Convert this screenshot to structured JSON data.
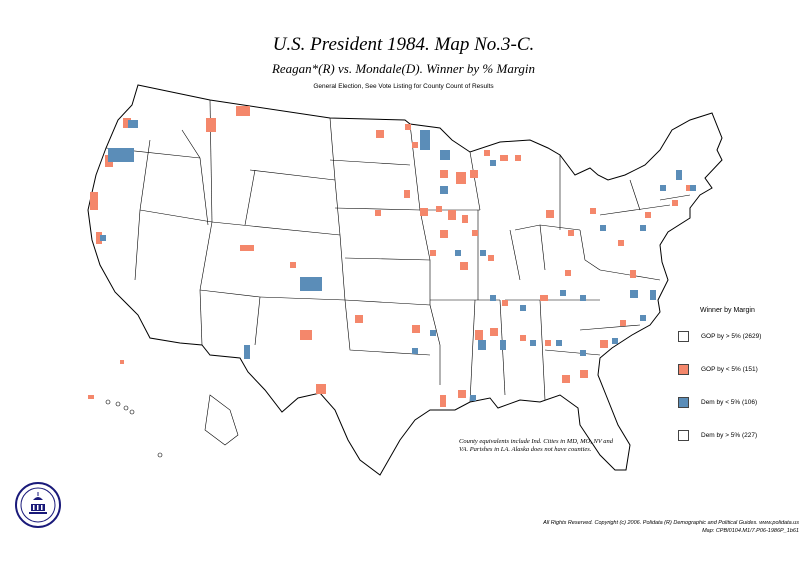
{
  "header": {
    "title": "U.S. President 1984. Map No.3-C.",
    "subtitle": "Reagan*(R) vs. Mondale(D). Winner by % Margin",
    "subsubtitle": "General Election, See Vote Listing for County Count of Results"
  },
  "legend": {
    "title": "Winner by Margin",
    "items": [
      {
        "label": "GOP by > 5% (2629)",
        "color": "#ffffff"
      },
      {
        "label": "GOP by < 5% (151)",
        "color": "#f4876b"
      },
      {
        "label": "Dem by < 5% (106)",
        "color": "#5b8db8"
      },
      {
        "label": "Dem by > 5% (227)",
        "color": "#ffffff"
      }
    ]
  },
  "note": "County equivalents include Ind. Cities in MD, MO, NV and VA. Parishes in LA. Alaska does not have counties.",
  "copyright": "All Rights Reserved. Copyright (c) 2006. Polidata (R) Demographic and Political Guides. www.polidata.us",
  "filename": "Map: CPBI0104.M1/7.P06-1986P_1b61",
  "logo_text": "POLIDATA",
  "colors": {
    "gop_small": "#f4876b",
    "dem_small": "#5b8db8",
    "outline": "#000000"
  }
}
